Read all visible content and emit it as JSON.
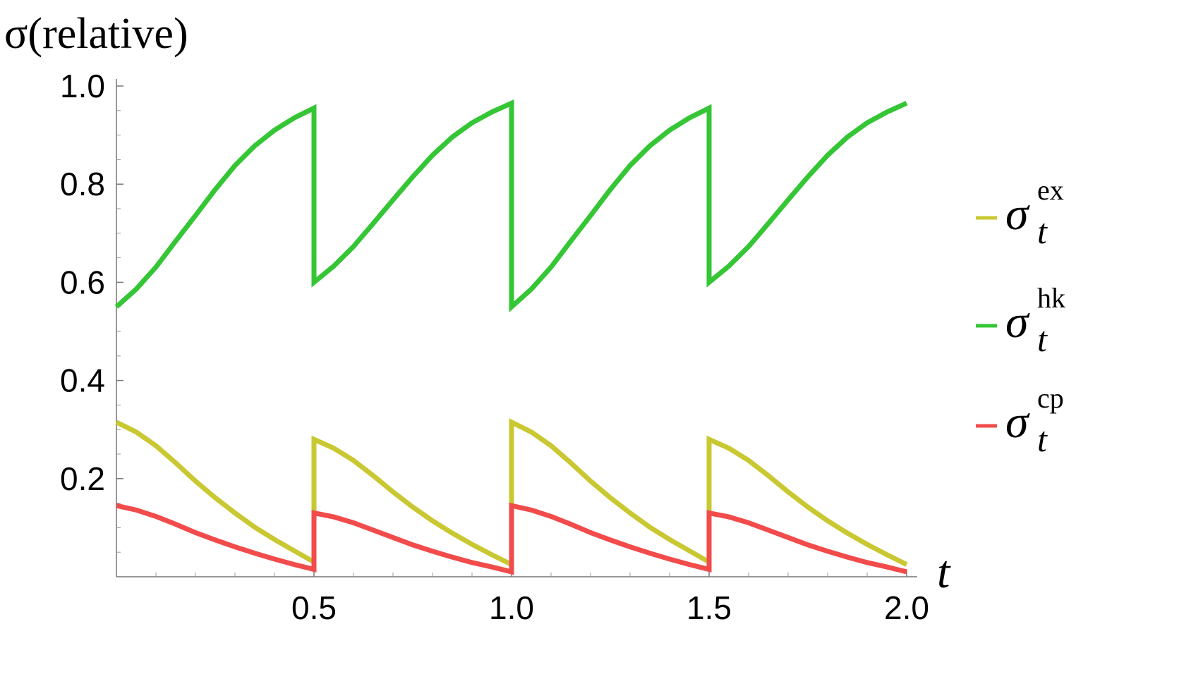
{
  "chart_data": {
    "type": "line",
    "ylabel": "σ(relative)",
    "xlabel": "t",
    "legend_base": "σ",
    "legend_sub": "t",
    "legend": "right",
    "x": [
      0,
      0.05,
      0.1,
      0.15,
      0.2,
      0.25,
      0.3,
      0.35,
      0.4,
      0.45,
      0.5,
      0.5,
      0.55,
      0.6,
      0.65,
      0.7,
      0.75,
      0.8,
      0.85,
      0.9,
      0.95,
      1.0,
      1.0,
      1.05,
      1.1,
      1.15,
      1.2,
      1.25,
      1.3,
      1.35,
      1.4,
      1.45,
      1.5,
      1.5,
      1.55,
      1.6,
      1.65,
      1.7,
      1.75,
      1.8,
      1.85,
      1.9,
      1.95,
      2.0
    ],
    "series": [
      {
        "name": "ex",
        "color": "#c9c832",
        "values": [
          0.315,
          0.295,
          0.267,
          0.232,
          0.195,
          0.161,
          0.13,
          0.101,
          0.076,
          0.053,
          0.03,
          0.28,
          0.262,
          0.237,
          0.206,
          0.173,
          0.142,
          0.114,
          0.089,
          0.066,
          0.045,
          0.025,
          0.315,
          0.295,
          0.267,
          0.232,
          0.195,
          0.161,
          0.13,
          0.101,
          0.076,
          0.053,
          0.03,
          0.28,
          0.262,
          0.237,
          0.206,
          0.173,
          0.142,
          0.114,
          0.089,
          0.066,
          0.045,
          0.025
        ]
      },
      {
        "name": "hk",
        "color": "#35c635",
        "values": [
          0.55,
          0.586,
          0.631,
          0.684,
          0.736,
          0.789,
          0.838,
          0.878,
          0.91,
          0.935,
          0.955,
          0.6,
          0.633,
          0.673,
          0.72,
          0.768,
          0.815,
          0.859,
          0.896,
          0.925,
          0.947,
          0.965,
          0.55,
          0.586,
          0.631,
          0.684,
          0.736,
          0.789,
          0.838,
          0.878,
          0.91,
          0.935,
          0.955,
          0.6,
          0.633,
          0.673,
          0.72,
          0.768,
          0.815,
          0.859,
          0.896,
          0.925,
          0.947,
          0.965
        ]
      },
      {
        "name": "cp",
        "color": "#f24b4b",
        "values": [
          0.145,
          0.136,
          0.123,
          0.107,
          0.09,
          0.075,
          0.061,
          0.048,
          0.036,
          0.025,
          0.015,
          0.13,
          0.122,
          0.11,
          0.095,
          0.08,
          0.065,
          0.052,
          0.04,
          0.029,
          0.02,
          0.01,
          0.145,
          0.136,
          0.123,
          0.107,
          0.09,
          0.075,
          0.061,
          0.048,
          0.036,
          0.025,
          0.015,
          0.13,
          0.122,
          0.11,
          0.095,
          0.08,
          0.065,
          0.052,
          0.04,
          0.029,
          0.02,
          0.01
        ]
      }
    ],
    "xlim": [
      0,
      2.0
    ],
    "ylim": [
      0,
      1.0
    ],
    "xticks": [
      0.5,
      {
        "value": 1,
        "label": "1.0"
      },
      1.5,
      {
        "value": 2,
        "label": "2.0"
      }
    ],
    "yticks": [
      0.2,
      0.4,
      0.6,
      0.8,
      {
        "value": 1,
        "label": "1.0"
      }
    ],
    "xminorticks": [
      0.1,
      0.2,
      0.3,
      0.4,
      0.6,
      0.7,
      0.8,
      0.9,
      1.1,
      1.2,
      1.3,
      1.4,
      1.6,
      1.7,
      1.8,
      1.9
    ],
    "yminorticks": [
      0.05,
      0.1,
      0.15,
      0.25,
      0.3,
      0.35,
      0.45,
      0.5,
      0.55,
      0.65,
      0.7,
      0.75,
      0.85,
      0.9,
      0.95
    ]
  }
}
